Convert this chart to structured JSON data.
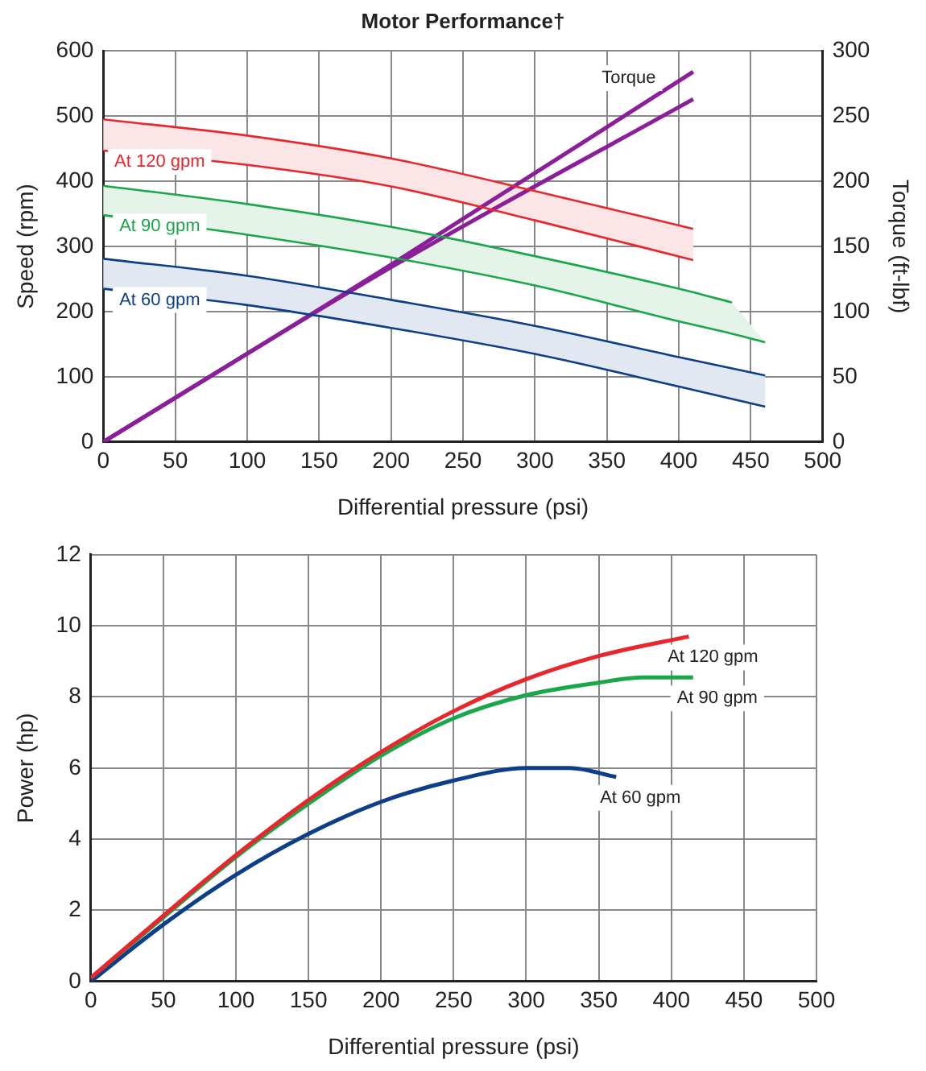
{
  "chart_data": [
    {
      "type": "line",
      "title": "Motor Performance†",
      "xlabel": "Differential pressure (psi)",
      "ylabel": "Speed (rpm)",
      "y2label": "Torque (ft-lbf)",
      "xlim": [
        0,
        500
      ],
      "xticks": [
        0,
        50,
        100,
        150,
        200,
        250,
        300,
        350,
        400,
        450,
        500
      ],
      "ylim": [
        0,
        600
      ],
      "yticks": [
        0,
        100,
        200,
        300,
        400,
        500,
        600
      ],
      "y2lim": [
        0,
        300
      ],
      "y2ticks": [
        0,
        50,
        100,
        150,
        200,
        250,
        300
      ],
      "grid": true,
      "legend": false,
      "series": [
        {
          "name": "At 120 gpm",
          "color": "#e8262b",
          "x": [
            0,
            100,
            200,
            300,
            410
          ],
          "values": [
            495,
            470,
            435,
            385,
            327
          ],
          "lower": [
            447,
            425,
            392,
            340,
            279
          ],
          "upper": [
            495,
            470,
            435,
            385,
            327
          ]
        },
        {
          "name": "At 90 gpm",
          "color": "#1aa64a",
          "x": [
            0,
            100,
            200,
            300,
            400,
            437,
            460
          ],
          "values": [
            393,
            365,
            330,
            285,
            235,
            214,
            null
          ],
          "lower": [
            348,
            318,
            283,
            240,
            185,
            166,
            153
          ],
          "upper": [
            393,
            365,
            330,
            285,
            235,
            214,
            153
          ]
        },
        {
          "name": "At 60 gpm",
          "color": "#0d3e8a",
          "x": [
            0,
            100,
            200,
            300,
            400,
            460
          ],
          "values": [
            281,
            255,
            218,
            178,
            130,
            102
          ],
          "lower": [
            235,
            210,
            175,
            135,
            85,
            54
          ],
          "upper": [
            281,
            255,
            218,
            178,
            130,
            102
          ]
        },
        {
          "name": "Torque",
          "color": "#8b1f9a",
          "axis": "y2",
          "x": [
            0,
            200,
            410
          ],
          "values": [
            0,
            136,
            284
          ]
        },
        {
          "color": "#8b1f9a",
          "axis": "y2",
          "x": [
            0,
            200,
            410
          ],
          "values": [
            0,
            134,
            263
          ]
        }
      ]
    },
    {
      "type": "line",
      "xlabel": "Differential pressure (psi)",
      "ylabel": "Power (hp)",
      "xlim": [
        0,
        500
      ],
      "xticks": [
        0,
        50,
        100,
        150,
        200,
        250,
        300,
        350,
        400,
        450,
        500
      ],
      "ylim": [
        0,
        12
      ],
      "yticks": [
        0,
        2,
        4,
        6,
        8,
        10,
        12
      ],
      "grid": true,
      "legend": false,
      "series": [
        {
          "name": "At 120 gpm",
          "color": "#e8262b",
          "x": [
            0,
            50,
            100,
            150,
            200,
            250,
            300,
            350,
            412
          ],
          "values": [
            0.1,
            1.85,
            3.55,
            5.1,
            6.45,
            7.6,
            8.5,
            9.15,
            9.7
          ]
        },
        {
          "name": "At 90 gpm",
          "color": "#1aa64a",
          "x": [
            0,
            50,
            100,
            150,
            200,
            250,
            300,
            350,
            380,
            415
          ],
          "values": [
            0.1,
            1.8,
            3.5,
            5.0,
            6.35,
            7.4,
            8.05,
            8.4,
            8.55,
            8.55
          ]
        },
        {
          "name": "At 60 gpm",
          "color": "#0d3e8a",
          "x": [
            0,
            50,
            100,
            150,
            200,
            250,
            300,
            330,
            362
          ],
          "values": [
            0,
            1.6,
            3.0,
            4.15,
            5.05,
            5.65,
            6.0,
            6.0,
            5.75
          ]
        }
      ]
    }
  ]
}
